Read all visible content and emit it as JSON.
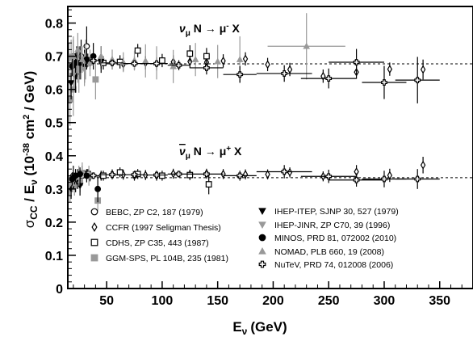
{
  "chart_data": {
    "type": "scatter",
    "xlabel": "E",
    "xlabel_sub": "ν",
    "xlabel_unit": "(GeV)",
    "ylabel_parts": [
      "σ",
      "CC",
      " / E",
      "ν",
      " (10",
      "-38",
      " cm",
      "2",
      " / GeV)"
    ],
    "xlim": [
      15,
      380
    ],
    "ylim": [
      0,
      0.85
    ],
    "x_ticks": [
      50,
      100,
      150,
      200,
      250,
      300,
      350
    ],
    "y_ticks": [
      0,
      0.1,
      0.2,
      0.3,
      0.4,
      0.5,
      0.6,
      0.7,
      0.8
    ],
    "x_tick_labels": [
      "50",
      "100",
      "150",
      "200",
      "250",
      "300",
      "350"
    ],
    "y_tick_labels": [
      "0",
      "0.1",
      "0.2",
      "0.3",
      "0.4",
      "0.5",
      "0.6",
      "0.7",
      "0.8"
    ],
    "grid": false,
    "legend_placement": "bottom",
    "reference_lines": [
      {
        "name": "nu_avg",
        "y": 0.677
      },
      {
        "name": "nubar_avg",
        "y": 0.334
      }
    ],
    "annotations": {
      "nu": {
        "sym": "ν",
        "sub": "μ",
        "rest": " N → μ",
        "sup": "-",
        "end": " X"
      },
      "nubar": {
        "sym": "ν",
        "sub": "μ",
        "rest": " N → μ",
        "sup": "+",
        "end": " X"
      }
    },
    "series": [
      {
        "name": "BEBC, ZP C2, 187 (1979)",
        "marker": "circle-open",
        "color": "#000000",
        "points": [
          [
            20,
            0.7,
            0.05,
            0
          ],
          [
            23,
            0.68,
            0.05,
            0
          ],
          [
            27,
            0.7,
            0.05,
            0
          ],
          [
            32,
            0.73,
            0.06,
            0
          ],
          [
            20,
            0.34,
            0.03,
            0
          ],
          [
            24,
            0.33,
            0.03,
            0
          ],
          [
            28,
            0.34,
            0.03,
            0
          ]
        ]
      },
      {
        "name": "CCFR (1997 Seligman Thesis)",
        "marker": "diamond-open",
        "color": "#000000",
        "points": [
          [
            35,
            0.68,
            0.02,
            2
          ],
          [
            45,
            0.682,
            0.02,
            2
          ],
          [
            55,
            0.68,
            0.02,
            2
          ],
          [
            65,
            0.676,
            0.02,
            2
          ],
          [
            75,
            0.68,
            0.02,
            2
          ],
          [
            85,
            0.68,
            0.02,
            2
          ],
          [
            95,
            0.677,
            0.02,
            2
          ],
          [
            110,
            0.683,
            0.02,
            2
          ],
          [
            125,
            0.684,
            0.02,
            2
          ],
          [
            140,
            0.682,
            0.02,
            2
          ],
          [
            155,
            0.686,
            0.02,
            2
          ],
          [
            175,
            0.692,
            0.02,
            2
          ],
          [
            195,
            0.675,
            0.02,
            2
          ],
          [
            215,
            0.66,
            0.02,
            2
          ],
          [
            245,
            0.64,
            0.02,
            2
          ],
          [
            275,
            0.652,
            0.02,
            2
          ],
          [
            305,
            0.661,
            0.02,
            2
          ],
          [
            335,
            0.66,
            0.03,
            2
          ],
          [
            35,
            0.338,
            0.015,
            2
          ],
          [
            45,
            0.34,
            0.015,
            2
          ],
          [
            55,
            0.344,
            0.015,
            2
          ],
          [
            65,
            0.343,
            0.015,
            2
          ],
          [
            75,
            0.34,
            0.015,
            2
          ],
          [
            85,
            0.342,
            0.015,
            2
          ],
          [
            95,
            0.34,
            0.015,
            2
          ],
          [
            110,
            0.346,
            0.015,
            2
          ],
          [
            125,
            0.343,
            0.015,
            2
          ],
          [
            140,
            0.346,
            0.015,
            2
          ],
          [
            155,
            0.345,
            0.015,
            2
          ],
          [
            175,
            0.344,
            0.015,
            2
          ],
          [
            195,
            0.344,
            0.015,
            2
          ],
          [
            215,
            0.35,
            0.015,
            2
          ],
          [
            245,
            0.338,
            0.015,
            2
          ],
          [
            275,
            0.352,
            0.02,
            2
          ],
          [
            305,
            0.341,
            0.02,
            2
          ],
          [
            335,
            0.372,
            0.025,
            2
          ]
        ]
      },
      {
        "name": "CDHS, ZP C35, 443 (1987)",
        "marker": "square-open",
        "color": "#000000",
        "points": [
          [
            33,
            0.688,
            0.02,
            0
          ],
          [
            47,
            0.68,
            0.02,
            0
          ],
          [
            62,
            0.683,
            0.02,
            0
          ],
          [
            78,
            0.717,
            0.02,
            0
          ],
          [
            100,
            0.687,
            0.02,
            0
          ],
          [
            125,
            0.708,
            0.025,
            0
          ],
          [
            140,
            0.7,
            0.025,
            0
          ],
          [
            33,
            0.345,
            0.015,
            0
          ],
          [
            47,
            0.34,
            0.015,
            0
          ],
          [
            62,
            0.35,
            0.015,
            0
          ],
          [
            78,
            0.345,
            0.015,
            0
          ],
          [
            100,
            0.34,
            0.015,
            0
          ],
          [
            125,
            0.342,
            0.015,
            0
          ],
          [
            142,
            0.314,
            0.03,
            0
          ]
        ]
      },
      {
        "name": "GGM-SPS, PL 104B, 235 (1981)",
        "marker": "square-filled",
        "color": "#999999",
        "points": [
          [
            17,
            0.57,
            0.08,
            0
          ],
          [
            20,
            0.6,
            0.08,
            0
          ],
          [
            25,
            0.66,
            0.07,
            0
          ],
          [
            31,
            0.69,
            0.06,
            0
          ],
          [
            40,
            0.63,
            0.06,
            0
          ],
          [
            17,
            0.3,
            0.04,
            0
          ],
          [
            21,
            0.31,
            0.03,
            0
          ],
          [
            26,
            0.32,
            0.03,
            0
          ],
          [
            34,
            0.34,
            0.03,
            0
          ],
          [
            42,
            0.265,
            0.03,
            0
          ]
        ]
      },
      {
        "name": "IHEP-ITEP, SJNP 30, 527 (1979)",
        "marker": "triangle-down-filled",
        "color": "#000000",
        "points": [
          [
            18,
            0.62,
            0.05,
            0
          ],
          [
            22,
            0.64,
            0.05,
            0
          ],
          [
            26,
            0.68,
            0.05,
            0
          ],
          [
            30,
            0.67,
            0.05,
            0
          ],
          [
            18,
            0.3,
            0.03,
            0
          ],
          [
            22,
            0.32,
            0.03,
            0
          ],
          [
            26,
            0.31,
            0.03,
            0
          ]
        ]
      },
      {
        "name": "IHEP-JINR, ZP C70, 39 (1996)",
        "marker": "triangle-down-filled",
        "color": "#999999",
        "points": [
          [
            16,
            0.69,
            0.05,
            0
          ],
          [
            18,
            0.7,
            0.05,
            0
          ],
          [
            21,
            0.65,
            0.05,
            0
          ],
          [
            24,
            0.67,
            0.05,
            0
          ],
          [
            27,
            0.68,
            0.05,
            0
          ],
          [
            30,
            0.66,
            0.05,
            0
          ],
          [
            16,
            0.31,
            0.03,
            0
          ],
          [
            19,
            0.32,
            0.03,
            0
          ],
          [
            22,
            0.33,
            0.03,
            0
          ],
          [
            25,
            0.34,
            0.03,
            0
          ],
          [
            28,
            0.35,
            0.03,
            0
          ]
        ]
      },
      {
        "name": "MINOS, PRD 81, 072002 (2010)",
        "marker": "circle-filled",
        "color": "#000000",
        "points": [
          [
            19,
            0.67,
            0.03,
            0
          ],
          [
            22,
            0.68,
            0.03,
            0
          ],
          [
            26,
            0.68,
            0.03,
            0
          ],
          [
            32,
            0.69,
            0.03,
            0
          ],
          [
            38,
            0.7,
            0.04,
            0
          ],
          [
            45,
            0.69,
            0.04,
            0
          ],
          [
            19,
            0.33,
            0.02,
            0
          ],
          [
            22,
            0.34,
            0.02,
            0
          ],
          [
            26,
            0.345,
            0.02,
            0
          ],
          [
            32,
            0.34,
            0.02,
            0
          ],
          [
            42,
            0.3,
            0.04,
            0
          ]
        ]
      },
      {
        "name": "NOMAD, PLB 660, 19 (2008)",
        "marker": "triangle-up-filled",
        "color": "#999999",
        "points": [
          [
            20,
            0.7,
            0.06,
            0
          ],
          [
            24,
            0.72,
            0.05,
            0
          ],
          [
            28,
            0.69,
            0.04,
            0
          ],
          [
            35,
            0.68,
            0.04,
            0
          ],
          [
            45,
            0.7,
            0.03,
            0
          ],
          [
            55,
            0.69,
            0.03,
            0
          ],
          [
            65,
            0.682,
            0.03,
            0
          ],
          [
            75,
            0.687,
            0.03,
            0
          ],
          [
            85,
            0.686,
            0.05,
            0
          ],
          [
            95,
            0.68,
            0.05,
            0
          ],
          [
            110,
            0.669,
            0.05,
            0
          ],
          [
            130,
            0.69,
            0.05,
            0
          ],
          [
            150,
            0.684,
            0.05,
            0
          ],
          [
            170,
            0.69,
            0.07,
            0
          ],
          [
            230,
            0.73,
            0.1,
            35
          ]
        ]
      },
      {
        "name": "NuTeV, PRD 74, 012008 (2006)",
        "marker": "cross-open",
        "color": "#000000",
        "points": [
          [
            38,
            0.687,
            0.01,
            5
          ],
          [
            55,
            0.68,
            0.01,
            10
          ],
          [
            75,
            0.678,
            0.01,
            10
          ],
          [
            95,
            0.678,
            0.01,
            10
          ],
          [
            115,
            0.673,
            0.015,
            10
          ],
          [
            140,
            0.665,
            0.02,
            15
          ],
          [
            170,
            0.645,
            0.025,
            15
          ],
          [
            210,
            0.648,
            0.025,
            25
          ],
          [
            250,
            0.633,
            0.03,
            25
          ],
          [
            275,
            0.682,
            0.04,
            25
          ],
          [
            300,
            0.621,
            0.05,
            20
          ],
          [
            330,
            0.628,
            0.07,
            20
          ],
          [
            38,
            0.34,
            0.01,
            5
          ],
          [
            55,
            0.343,
            0.01,
            10
          ],
          [
            75,
            0.343,
            0.01,
            10
          ],
          [
            95,
            0.342,
            0.01,
            10
          ],
          [
            115,
            0.345,
            0.01,
            10
          ],
          [
            140,
            0.345,
            0.01,
            15
          ],
          [
            170,
            0.34,
            0.015,
            15
          ],
          [
            210,
            0.352,
            0.02,
            25
          ],
          [
            250,
            0.338,
            0.02,
            25
          ],
          [
            275,
            0.327,
            0.02,
            25
          ],
          [
            300,
            0.33,
            0.025,
            20
          ],
          [
            330,
            0.33,
            0.03,
            20
          ]
        ]
      }
    ]
  }
}
